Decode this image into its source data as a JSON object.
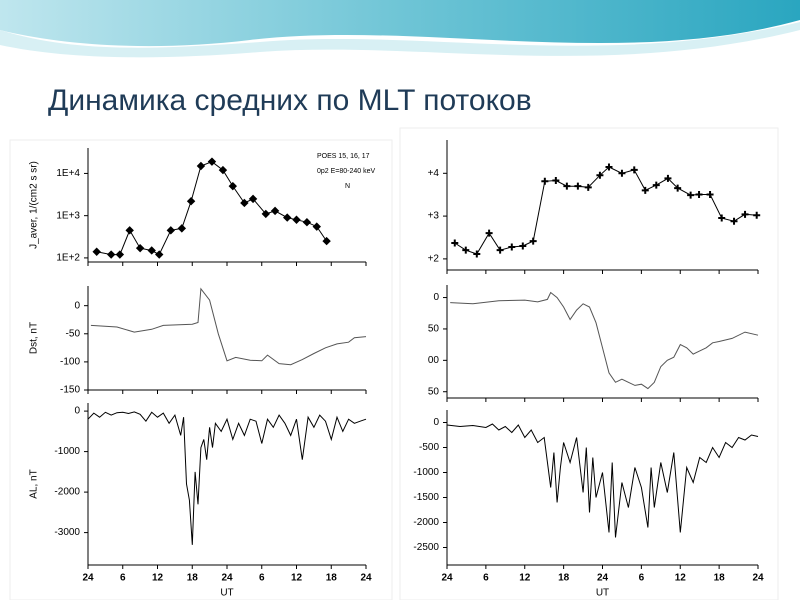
{
  "slide_title": "Динамика средних по MLT потоков",
  "chart_data": [
    {
      "type": "line",
      "color": "#000000",
      "marker": "diamond",
      "log": true,
      "ylabel": "J_aver, 1/(cm2 s sr)",
      "annotations": [
        "POES 15, 16, 17",
        "0p2   E=80-240 keV",
        "N"
      ],
      "x": [
        1.5,
        4,
        5.5,
        7.2,
        9,
        11,
        12.3,
        14.3,
        16.2,
        17.8,
        19.5,
        21.4,
        23.3,
        25,
        27,
        28.5,
        30.7,
        32.3,
        34.4,
        36,
        37.8,
        39.5,
        41.2
      ],
      "values": [
        140,
        120,
        120,
        450,
        170,
        150,
        120,
        450,
        500,
        2200,
        15000,
        19000,
        12000,
        5000,
        2000,
        2500,
        1100,
        1300,
        900,
        800,
        700,
        550,
        250
      ],
      "xlim": [
        0,
        48
      ],
      "xticks": [
        0,
        6,
        12,
        18,
        24,
        30,
        36,
        42,
        48
      ],
      "xtick_labels": false,
      "ylim": [
        80,
        40000
      ],
      "yticks": [
        {
          "value": 100,
          "label": "1E+2"
        },
        {
          "value": 1000,
          "label": "1E+3"
        },
        {
          "value": 10000,
          "label": "1E+4"
        }
      ]
    },
    {
      "type": "line",
      "color": "#555555",
      "ylabel": "Dst, nT",
      "x": [
        0.5,
        5,
        8,
        11,
        13,
        18,
        19,
        19.5,
        21,
        22.5,
        24,
        25.5,
        28,
        30,
        31,
        33,
        35,
        37,
        39,
        41,
        43,
        45,
        46,
        48
      ],
      "values": [
        -35,
        -38,
        -47,
        -42,
        -35,
        -33,
        -30,
        30,
        10,
        -50,
        -98,
        -92,
        -97,
        -98,
        -88,
        -103,
        -105,
        -96,
        -85,
        -75,
        -68,
        -65,
        -57,
        -55
      ],
      "xlim": [
        0,
        48
      ],
      "xticks": [
        0,
        6,
        12,
        18,
        24,
        30,
        36,
        42,
        48
      ],
      "xtick_labels": false,
      "ylim": [
        -150,
        35
      ],
      "yticks": [
        0,
        -50,
        -100,
        -150
      ]
    },
    {
      "type": "line",
      "color": "#000000",
      "ylabel": "AL, nT",
      "xlabel": "UT",
      "x": [
        0,
        1,
        2,
        3,
        4,
        5,
        6,
        7,
        8,
        9,
        10,
        11,
        12,
        13,
        14,
        15,
        16,
        16.5,
        17,
        17.5,
        18,
        18.5,
        19,
        19.5,
        20,
        20.5,
        21,
        21.5,
        22,
        23,
        24,
        25,
        26,
        27,
        28,
        29,
        30,
        31,
        32,
        33,
        34,
        35,
        36,
        37,
        38,
        39,
        40,
        41,
        42,
        43,
        44,
        45,
        46,
        47,
        48
      ],
      "values": [
        -200,
        -50,
        -150,
        -30,
        -100,
        -40,
        -30,
        -60,
        -20,
        -80,
        -250,
        -30,
        -150,
        -50,
        -300,
        -100,
        -600,
        -150,
        -1800,
        -2200,
        -3300,
        -1500,
        -2300,
        -900,
        -700,
        -1200,
        -400,
        -900,
        -300,
        -500,
        -200,
        -700,
        -300,
        -600,
        -200,
        -250,
        -800,
        -200,
        -400,
        -100,
        -300,
        -600,
        -200,
        -1200,
        -150,
        -400,
        -100,
        -250,
        -700,
        -150,
        -500,
        -200,
        -300,
        -250,
        -200
      ],
      "xlim": [
        0,
        48
      ],
      "xticks": [
        {
          "value": 0,
          "label": "24"
        },
        {
          "value": 6,
          "label": "6"
        },
        {
          "value": 12,
          "label": "12"
        },
        {
          "value": 18,
          "label": "18"
        },
        {
          "value": 24,
          "label": "24"
        },
        {
          "value": 30,
          "label": "6"
        },
        {
          "value": 36,
          "label": "12"
        },
        {
          "value": 42,
          "label": "18"
        },
        {
          "value": 48,
          "label": "24"
        }
      ],
      "ylim": [
        -3800,
        200
      ],
      "yticks": [
        0,
        -1000,
        -2000,
        -3000
      ]
    },
    {
      "type": "line",
      "color": "#000000",
      "marker": "plus",
      "log": true,
      "x": [
        1.2,
        2.9,
        4.6,
        6.5,
        8.2,
        10,
        11.7,
        13.3,
        15.1,
        16.8,
        18.5,
        20.2,
        21.8,
        23.6,
        25,
        27,
        28.9,
        30.6,
        32.3,
        34.1,
        35.6,
        37.6,
        38.9,
        40.6,
        42.4,
        44.3,
        46,
        47.8
      ],
      "values": [
        235,
        160,
        130,
        400,
        160,
        190,
        200,
        260,
        6500,
        6800,
        5000,
        5000,
        4700,
        9000,
        14000,
        10000,
        12000,
        4000,
        5300,
        7600,
        4500,
        3100,
        3200,
        3200,
        900,
        760,
        1100,
        1050
      ],
      "xlim": [
        0,
        48
      ],
      "xticks": [
        0,
        6,
        12,
        18,
        24,
        30,
        36,
        42,
        48
      ],
      "xtick_labels": false,
      "ylim": [
        55,
        60000
      ],
      "yticks": [
        {
          "value": 100,
          "label": "+2"
        },
        {
          "value": 1000,
          "label": "+3"
        },
        {
          "value": 10000,
          "label": "+4"
        }
      ]
    },
    {
      "type": "line",
      "color": "#555555",
      "x": [
        0.5,
        4,
        8,
        12,
        14,
        15.5,
        16,
        17,
        18,
        19,
        20,
        21,
        22,
        23,
        24,
        25,
        26,
        27,
        28,
        29,
        30,
        31,
        32,
        33,
        34,
        35,
        36,
        37,
        38,
        39,
        40,
        41,
        42,
        44,
        46,
        48
      ],
      "values": [
        -8,
        -10,
        -5,
        -4,
        -7,
        -3,
        8,
        0,
        -15,
        -35,
        -20,
        -10,
        -15,
        -40,
        -80,
        -120,
        -135,
        -130,
        -135,
        -140,
        -138,
        -145,
        -135,
        -110,
        -100,
        -95,
        -75,
        -80,
        -90,
        -85,
        -80,
        -72,
        -70,
        -65,
        -55,
        -60
      ],
      "xlim": [
        0,
        48
      ],
      "xticks": [
        0,
        6,
        12,
        18,
        24,
        30,
        36,
        42,
        48
      ],
      "xtick_labels": false,
      "ylim": [
        -160,
        20
      ],
      "yticks": [
        0,
        {
          "value": -50,
          "label": "50"
        },
        {
          "value": -100,
          "label": "00"
        },
        {
          "value": -150,
          "label": "50"
        }
      ]
    },
    {
      "type": "line",
      "color": "#000000",
      "xlabel": "UT",
      "x": [
        0,
        2,
        4,
        6,
        7,
        8,
        9,
        10,
        11,
        12,
        13,
        14,
        15,
        16,
        16.5,
        17,
        17.5,
        18,
        19,
        20,
        21,
        21.5,
        22,
        22.5,
        23,
        24,
        25,
        25.5,
        26,
        27,
        28,
        29,
        30,
        31,
        31.5,
        32,
        33,
        34,
        35,
        36,
        37,
        38,
        39,
        40,
        41,
        42,
        43,
        44,
        45,
        46,
        47,
        48
      ],
      "values": [
        -50,
        -80,
        -60,
        -100,
        -30,
        -150,
        -80,
        -200,
        -50,
        -300,
        -150,
        -400,
        -300,
        -1300,
        -600,
        -1600,
        -900,
        -400,
        -800,
        -300,
        -1400,
        -500,
        -1800,
        -700,
        -1500,
        -1000,
        -2200,
        -800,
        -2300,
        -1200,
        -1700,
        -900,
        -1300,
        -2100,
        -900,
        -1700,
        -800,
        -1400,
        -600,
        -2200,
        -900,
        -1200,
        -700,
        -800,
        -500,
        -700,
        -400,
        -500,
        -300,
        -350,
        -250,
        -280
      ],
      "xlim": [
        0,
        48
      ],
      "xticks": [
        {
          "value": 0,
          "label": "24"
        },
        {
          "value": 6,
          "label": "6"
        },
        {
          "value": 12,
          "label": "12"
        },
        {
          "value": 18,
          "label": "18"
        },
        {
          "value": 24,
          "label": "24"
        },
        {
          "value": 30,
          "label": "6"
        },
        {
          "value": 36,
          "label": "12"
        },
        {
          "value": 42,
          "label": "18"
        },
        {
          "value": 48,
          "label": "24"
        }
      ],
      "ylim": [
        -2850,
        250
      ],
      "yticks": [
        0,
        -500,
        -1000,
        -1500,
        -2000,
        -2500
      ]
    }
  ]
}
